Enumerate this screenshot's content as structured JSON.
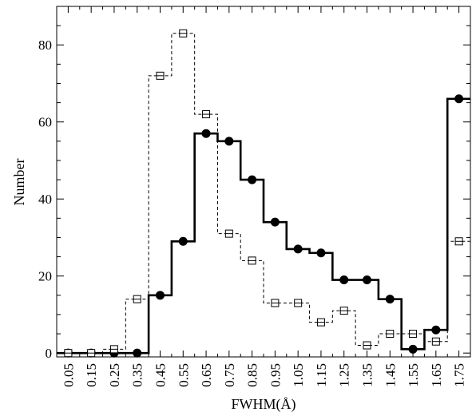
{
  "chart_data": {
    "type": "bar",
    "xlabel": "FWHM(Å)",
    "ylabel": "Number",
    "categories": [
      "0.05",
      "0.15",
      "0.25",
      "0.35",
      "0.45",
      "0.55",
      "0.65",
      "0.75",
      "0.85",
      "0.95",
      "1.05",
      "1.15",
      "1.25",
      "1.35",
      "1.45",
      "1.55",
      "1.65",
      "1.75"
    ],
    "series": [
      {
        "style": "solid-step-filled-circle",
        "values": [
          0,
          0,
          0,
          0,
          15,
          29,
          57,
          55,
          45,
          34,
          27,
          26,
          19,
          19,
          14,
          1,
          6,
          66
        ]
      },
      {
        "style": "dashed-step-open-square",
        "values": [
          0,
          0,
          1,
          14,
          72,
          83,
          62,
          31,
          24,
          13,
          13,
          8,
          11,
          2,
          5,
          5,
          3,
          29
        ]
      }
    ],
    "xlim": [
      0.0,
      1.8
    ],
    "ylim": [
      -1,
      90
    ],
    "yticks": [
      0,
      20,
      40,
      60,
      80
    ],
    "grid": false
  }
}
